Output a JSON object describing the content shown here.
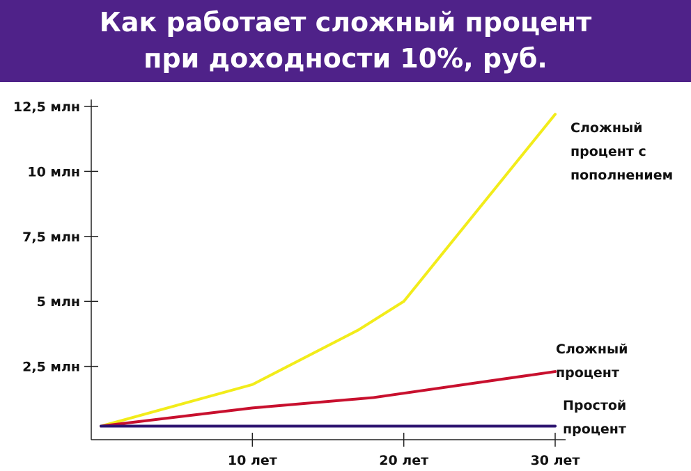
{
  "chart_data": {
    "type": "line",
    "title": [
      "Как работает сложный процент",
      "при доходности 10%, руб."
    ],
    "x": [
      0,
      10,
      20,
      30
    ],
    "x_tick_labels": [
      {
        "value": 10,
        "label": "10 лет"
      },
      {
        "value": 20,
        "label": "20 лет"
      },
      {
        "value": 30,
        "label": "30 лет"
      }
    ],
    "y_ticks": [
      {
        "value": 2.5,
        "label": "2,5 млн"
      },
      {
        "value": 5,
        "label": "5 млн"
      },
      {
        "value": 7.5,
        "label": "7,5 млн"
      },
      {
        "value": 10,
        "label": "10 млн"
      },
      {
        "value": 12.5,
        "label": "12,5 млн"
      }
    ],
    "xlim": [
      0,
      30
    ],
    "ylim": [
      0,
      12.5
    ],
    "grid": false,
    "series": [
      {
        "name": [
          "Сложный",
          "процент с",
          "пополнением"
        ],
        "color": "#f2ec1a",
        "points": [
          [
            0,
            0.2
          ],
          [
            10,
            1.8
          ],
          [
            17,
            3.9
          ],
          [
            20,
            5.0
          ],
          [
            30,
            12.2
          ]
        ]
      },
      {
        "name": [
          "Сложный",
          "процент"
        ],
        "color": "#c8102e",
        "points": [
          [
            0,
            0.2
          ],
          [
            10,
            0.9
          ],
          [
            18,
            1.3
          ],
          [
            30,
            2.3
          ]
        ]
      },
      {
        "name": [
          "Простой",
          "процент"
        ],
        "color": "#2d1470",
        "points": [
          [
            0,
            0.2
          ],
          [
            30,
            0.2
          ]
        ]
      }
    ]
  }
}
